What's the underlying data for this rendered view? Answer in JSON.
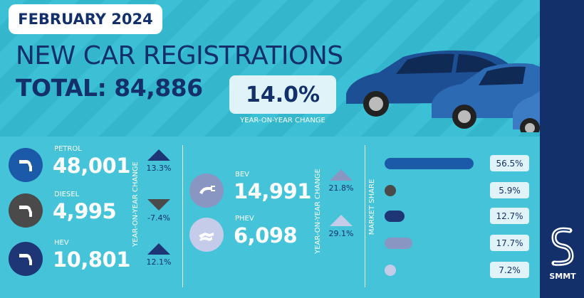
{
  "header": {
    "date": "FEBRUARY 2024",
    "title": "NEW CAR REGISTRATIONS",
    "total": "TOTAL: 84,886",
    "yoy_change": "14.0%",
    "yoy_caption": "YEAR-ON-YEAR CHANGE"
  },
  "fuels": [
    {
      "label": "PETROL",
      "value": "48,001",
      "change": "13.3%",
      "direction": "up",
      "icon": "fuel-pump-icon",
      "color": "#1a5aa8"
    },
    {
      "label": "DIESEL",
      "value": "4,995",
      "change": "-7.4%",
      "direction": "down",
      "icon": "fuel-pump-icon",
      "color": "#4a4a4a"
    },
    {
      "label": "HEV",
      "value": "10,801",
      "change": "12.1%",
      "direction": "up",
      "icon": "fuel-pump-icon",
      "color": "#1e3576"
    },
    {
      "label": "BEV",
      "value": "14,991",
      "change": "21.8%",
      "direction": "up",
      "icon": "charging-plug-icon",
      "color": "#8a96c2"
    },
    {
      "label": "PHEV",
      "value": "6,098",
      "change": "29.1%",
      "direction": "up",
      "icon": "hybrid-plug-icon",
      "color": "#c4ccea"
    }
  ],
  "labels": {
    "yoy_vertical": "YEAR-ON-YEAR CHANGE",
    "market_share": "MARKET SHARE"
  },
  "market_share": [
    {
      "value": 56.5,
      "label": "56.5%",
      "color": "#1a5aa8"
    },
    {
      "value": 5.9,
      "label": "5.9%",
      "color": "#4a4a4a"
    },
    {
      "value": 12.7,
      "label": "12.7%",
      "color": "#1e3576"
    },
    {
      "value": 17.7,
      "label": "17.7%",
      "color": "#8a96c2"
    },
    {
      "value": 7.2,
      "label": "7.2%",
      "color": "#c4ccea"
    }
  ],
  "logo": {
    "text": "SMMT"
  },
  "colors": {
    "navy": "#13306b",
    "up": "#1e3576",
    "down": "#4a4a4a",
    "up_light": "#8a96c2",
    "up_lighter": "#c4ccea"
  }
}
